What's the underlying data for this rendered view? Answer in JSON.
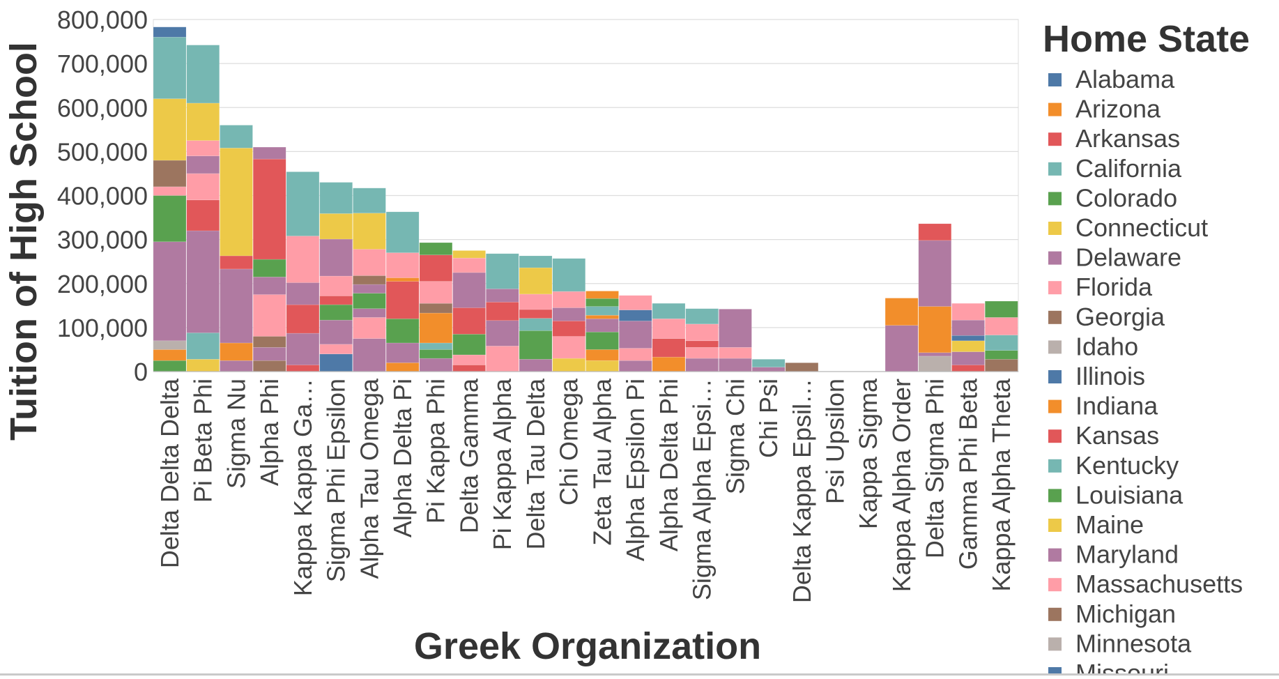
{
  "chart_data": {
    "type": "bar",
    "stacked": true,
    "xlabel": "Greek Organization",
    "ylabel": "Tuition of High School",
    "ylim": [
      0,
      800000
    ],
    "yticks": [
      0,
      100000,
      200000,
      300000,
      400000,
      500000,
      600000,
      700000,
      800000
    ],
    "ytick_labels": [
      "0",
      "100,000",
      "200,000",
      "300,000",
      "400,000",
      "500,000",
      "600,000",
      "700,000",
      "800,000"
    ],
    "grid": true,
    "legend_position": "right",
    "legend_title": "Home State",
    "categories": [
      "Delta Delta Delta",
      "Pi Beta Phi",
      "Sigma Nu",
      "Alpha Phi",
      "Kappa Kappa Ga…",
      "Sigma Phi Epsilon",
      "Alpha Tau Omega",
      "Alpha Delta Pi",
      "Pi Kappa Phi",
      "Delta Gamma",
      "Pi Kappa Alpha",
      "Delta Tau Delta",
      "Chi Omega",
      "Zeta Tau Alpha",
      "Alpha Epsilon Pi",
      "Alpha Delta Phi",
      "Sigma Alpha Epsi…",
      "Sigma Chi",
      "Chi Psi",
      "Delta Kappa Epsil…",
      "Psi Upsilon",
      "Kappa Sigma",
      "Kappa Alpha Order",
      "Delta Sigma Phi",
      "Gamma Phi Beta",
      "Kappa Alpha Theta"
    ],
    "legend": [
      {
        "name": "Alabama",
        "color": "#4e79a7"
      },
      {
        "name": "Arizona",
        "color": "#f28e2b"
      },
      {
        "name": "Arkansas",
        "color": "#e15759"
      },
      {
        "name": "California",
        "color": "#76b7b2"
      },
      {
        "name": "Colorado",
        "color": "#59a14f"
      },
      {
        "name": "Connecticut",
        "color": "#edc948"
      },
      {
        "name": "Delaware",
        "color": "#b07aa1"
      },
      {
        "name": "Florida",
        "color": "#ff9da7"
      },
      {
        "name": "Georgia",
        "color": "#9c755f"
      },
      {
        "name": "Idaho",
        "color": "#bab0ac"
      },
      {
        "name": "Illinois",
        "color": "#4e79a7"
      },
      {
        "name": "Indiana",
        "color": "#f28e2b"
      },
      {
        "name": "Kansas",
        "color": "#e15759"
      },
      {
        "name": "Kentucky",
        "color": "#76b7b2"
      },
      {
        "name": "Louisiana",
        "color": "#59a14f"
      },
      {
        "name": "Maine",
        "color": "#edc948"
      },
      {
        "name": "Maryland",
        "color": "#b07aa1"
      },
      {
        "name": "Massachusetts",
        "color": "#ff9da7"
      },
      {
        "name": "Michigan",
        "color": "#9c755f"
      },
      {
        "name": "Minnesota",
        "color": "#bab0ac"
      },
      {
        "name": "Missouri",
        "color": "#4e79a7"
      }
    ],
    "stacks": [
      [
        [
          "#59a14f",
          25000
        ],
        [
          "#f28e2b",
          25000
        ],
        [
          "#bab0ac",
          20000
        ],
        [
          "#b07aa1",
          225000
        ],
        [
          "#59a14f",
          105000
        ],
        [
          "#ff9da7",
          20000
        ],
        [
          "#9c755f",
          60000
        ],
        [
          "#edc948",
          140000
        ],
        [
          "#76b7b2",
          140000
        ],
        [
          "#4e79a7",
          23000
        ]
      ],
      [
        [
          "#edc948",
          28000
        ],
        [
          "#76b7b2",
          60000
        ],
        [
          "#b07aa1",
          232000
        ],
        [
          "#e15759",
          70000
        ],
        [
          "#ff9da7",
          60000
        ],
        [
          "#b07aa1",
          40000
        ],
        [
          "#ff9da7",
          35000
        ],
        [
          "#edc948",
          85000
        ],
        [
          "#76b7b2",
          132000
        ]
      ],
      [
        [
          "#b07aa1",
          25000
        ],
        [
          "#f28e2b",
          40000
        ],
        [
          "#b07aa1",
          168000
        ],
        [
          "#e15759",
          30000
        ],
        [
          "#edc948",
          245000
        ],
        [
          "#76b7b2",
          52000
        ]
      ],
      [
        [
          "#9c755f",
          25000
        ],
        [
          "#b07aa1",
          30000
        ],
        [
          "#9c755f",
          25000
        ],
        [
          "#ff9da7",
          95000
        ],
        [
          "#b07aa1",
          40000
        ],
        [
          "#59a14f",
          40000
        ],
        [
          "#e15759",
          228000
        ],
        [
          "#b07aa1",
          27000
        ]
      ],
      [
        [
          "#e15759",
          15000
        ],
        [
          "#b07aa1",
          72000
        ],
        [
          "#e15759",
          65000
        ],
        [
          "#b07aa1",
          50000
        ],
        [
          "#ff9da7",
          106000
        ],
        [
          "#76b7b2",
          146000
        ]
      ],
      [
        [
          "#4e79a7",
          40000
        ],
        [
          "#ff9da7",
          22000
        ],
        [
          "#b07aa1",
          55000
        ],
        [
          "#59a14f",
          35000
        ],
        [
          "#e15759",
          20000
        ],
        [
          "#ff9da7",
          45000
        ],
        [
          "#b07aa1",
          84000
        ],
        [
          "#edc948",
          58000
        ],
        [
          "#76b7b2",
          71000
        ]
      ],
      [
        [
          "#b07aa1",
          75000
        ],
        [
          "#ff9da7",
          48000
        ],
        [
          "#b07aa1",
          20000
        ],
        [
          "#59a14f",
          35000
        ],
        [
          "#b07aa1",
          20000
        ],
        [
          "#9c755f",
          20000
        ],
        [
          "#ff9da7",
          60000
        ],
        [
          "#edc948",
          82000
        ],
        [
          "#76b7b2",
          57000
        ]
      ],
      [
        [
          "#f28e2b",
          20000
        ],
        [
          "#b07aa1",
          45000
        ],
        [
          "#59a14f",
          55000
        ],
        [
          "#e15759",
          85000
        ],
        [
          "#f28e2b",
          8000
        ],
        [
          "#ff9da7",
          57000
        ],
        [
          "#76b7b2",
          93000
        ]
      ],
      [
        [
          "#b07aa1",
          30000
        ],
        [
          "#59a14f",
          20000
        ],
        [
          "#76b7b2",
          15000
        ],
        [
          "#f28e2b",
          68000
        ],
        [
          "#9c755f",
          22000
        ],
        [
          "#ff9da7",
          50000
        ],
        [
          "#e15759",
          60000
        ],
        [
          "#59a14f",
          28000
        ]
      ],
      [
        [
          "#e15759",
          15000
        ],
        [
          "#ff9da7",
          23000
        ],
        [
          "#59a14f",
          47000
        ],
        [
          "#e15759",
          60000
        ],
        [
          "#b07aa1",
          80000
        ],
        [
          "#ff9da7",
          33000
        ],
        [
          "#edc948",
          17000
        ]
      ],
      [
        [
          "#ff9da7",
          58000
        ],
        [
          "#b07aa1",
          58000
        ],
        [
          "#e15759",
          42000
        ],
        [
          "#b07aa1",
          30000
        ],
        [
          "#76b7b2",
          80000
        ]
      ],
      [
        [
          "#b07aa1",
          28000
        ],
        [
          "#59a14f",
          65000
        ],
        [
          "#76b7b2",
          28000
        ],
        [
          "#e15759",
          20000
        ],
        [
          "#ff9da7",
          35000
        ],
        [
          "#edc948",
          60000
        ],
        [
          "#76b7b2",
          27000
        ]
      ],
      [
        [
          "#edc948",
          30000
        ],
        [
          "#ff9da7",
          50000
        ],
        [
          "#e15759",
          35000
        ],
        [
          "#b07aa1",
          30000
        ],
        [
          "#ff9da7",
          37000
        ],
        [
          "#76b7b2",
          75000
        ]
      ],
      [
        [
          "#edc948",
          25000
        ],
        [
          "#f28e2b",
          25000
        ],
        [
          "#59a14f",
          40000
        ],
        [
          "#b07aa1",
          30000
        ],
        [
          "#f28e2b",
          8000
        ],
        [
          "#76b7b2",
          20000
        ],
        [
          "#59a14f",
          18000
        ],
        [
          "#f28e2b",
          17000
        ]
      ],
      [
        [
          "#b07aa1",
          25000
        ],
        [
          "#ff9da7",
          28000
        ],
        [
          "#b07aa1",
          62000
        ],
        [
          "#4e79a7",
          25000
        ],
        [
          "#ff9da7",
          33000
        ]
      ],
      [
        [
          "#f28e2b",
          33000
        ],
        [
          "#e15759",
          42000
        ],
        [
          "#ff9da7",
          45000
        ],
        [
          "#76b7b2",
          35000
        ]
      ],
      [
        [
          "#b07aa1",
          30000
        ],
        [
          "#ff9da7",
          25000
        ],
        [
          "#e15759",
          15000
        ],
        [
          "#ff9da7",
          38000
        ],
        [
          "#76b7b2",
          35000
        ]
      ],
      [
        [
          "#b07aa1",
          30000
        ],
        [
          "#ff9da7",
          25000
        ],
        [
          "#b07aa1",
          87000
        ]
      ],
      [
        [
          "#b07aa1",
          10000
        ],
        [
          "#76b7b2",
          18000
        ]
      ],
      [
        [
          "#9c755f",
          20000
        ]
      ],
      [],
      [],
      [
        [
          "#b07aa1",
          105000
        ],
        [
          "#f28e2b",
          62000
        ]
      ],
      [
        [
          "#bab0ac",
          35000
        ],
        [
          "#b07aa1",
          8000
        ],
        [
          "#f28e2b",
          105000
        ],
        [
          "#b07aa1",
          150000
        ],
        [
          "#e15759",
          38000
        ]
      ],
      [
        [
          "#e15759",
          15000
        ],
        [
          "#b07aa1",
          30000
        ],
        [
          "#edc948",
          25000
        ],
        [
          "#4e79a7",
          12000
        ],
        [
          "#b07aa1",
          35000
        ],
        [
          "#ff9da7",
          38000
        ]
      ],
      [
        [
          "#9c755f",
          28000
        ],
        [
          "#59a14f",
          20000
        ],
        [
          "#76b7b2",
          35000
        ],
        [
          "#ff9da7",
          40000
        ],
        [
          "#59a14f",
          37000
        ]
      ]
    ]
  }
}
